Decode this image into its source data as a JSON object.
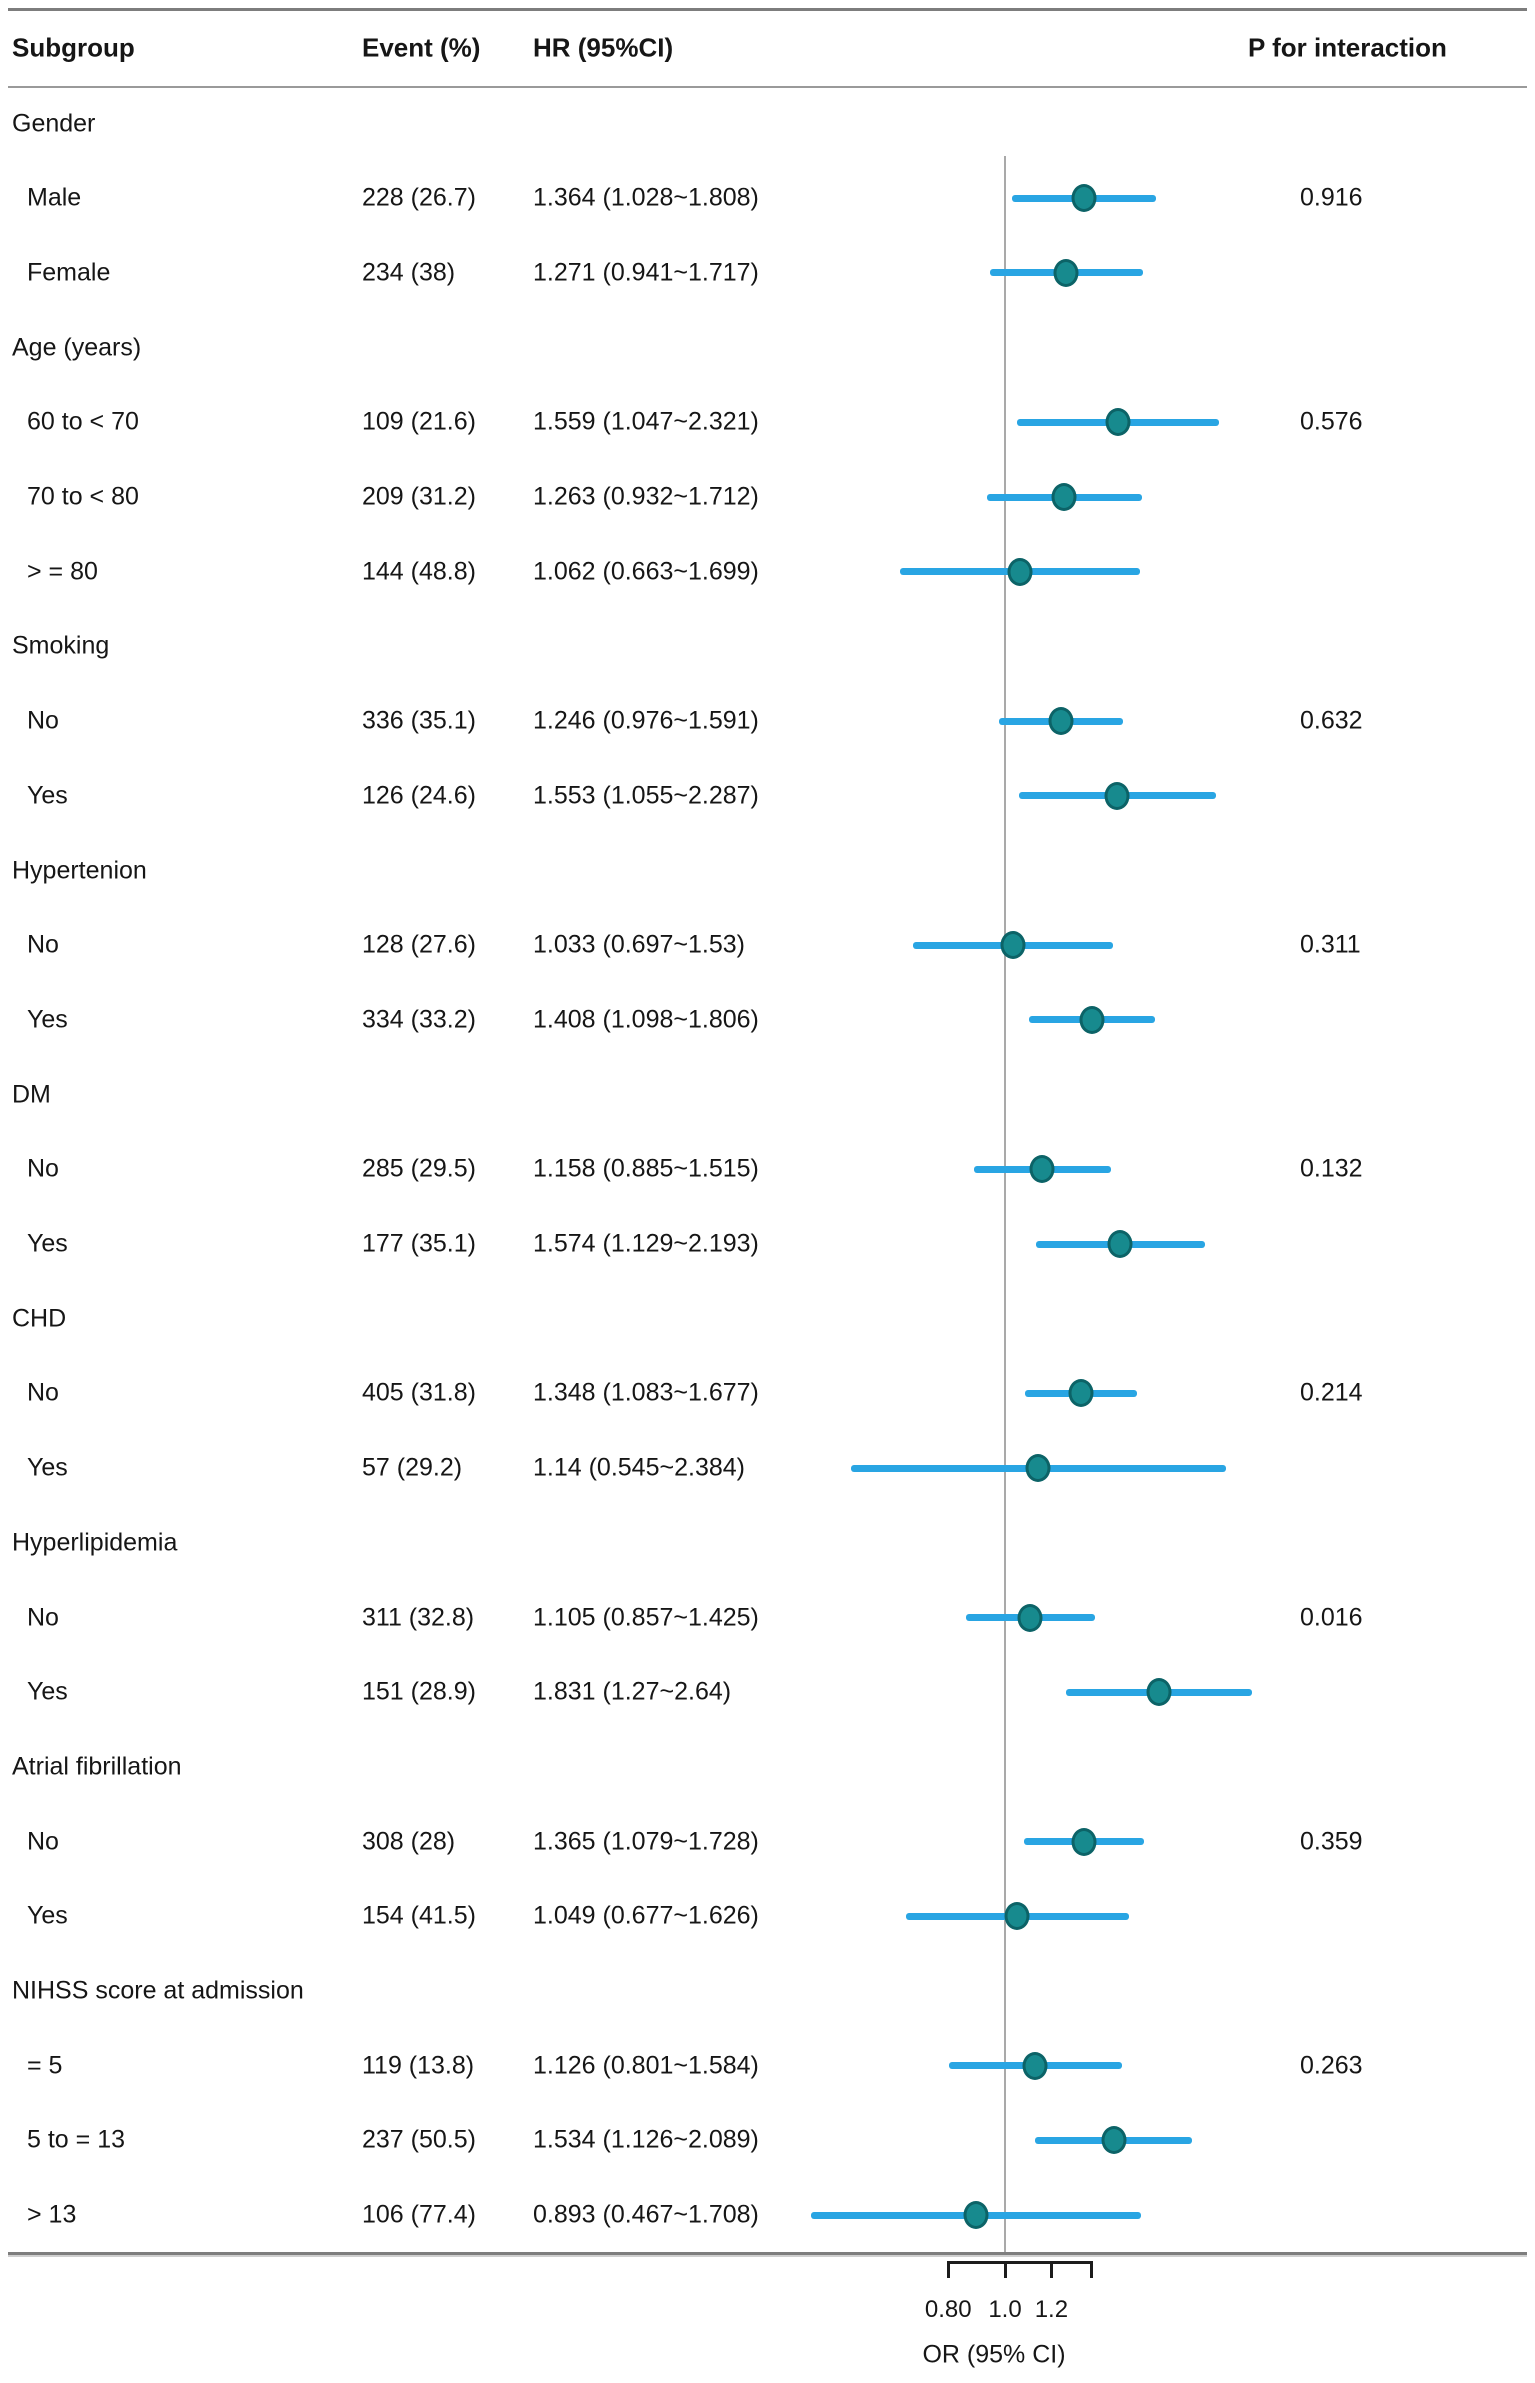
{
  "header": {
    "subgroup": "Subgroup",
    "event": "Event (%)",
    "hr": "HR (95%CI)",
    "p_interaction": "P for interaction"
  },
  "colors": {
    "marker_fill": "#178a8e",
    "marker_border": "#0c6367",
    "ci_line": "#29a5e3",
    "reference_line": "#a9a9a9",
    "rule_gray": "#7d7d7d",
    "text": "#161616"
  },
  "chart_data": {
    "type": "forest",
    "x_scale": "log10",
    "xlabel": "OR (95% CI)",
    "x_ticks": [
      {
        "label": "0.80",
        "value": 0.8
      },
      {
        "label": "1.0",
        "value": 1.0
      },
      {
        "label": "1.2",
        "value": 1.2
      }
    ],
    "x_axis_end_value": 1.4,
    "reference_value": 1.0,
    "columns": [
      "Subgroup",
      "Event (%)",
      "HR (95%CI)",
      "P for interaction"
    ],
    "rows": [
      {
        "type": "section",
        "label": "Gender"
      },
      {
        "type": "item",
        "label": "Male",
        "event": "228 (26.7)",
        "hr_text": "1.364 (1.028~1.808)",
        "or": 1.364,
        "lo": 1.028,
        "hi": 1.808,
        "p": "0.916"
      },
      {
        "type": "item",
        "label": "Female",
        "event": "234 (38)",
        "hr_text": "1.271 (0.941~1.717)",
        "or": 1.271,
        "lo": 0.941,
        "hi": 1.717
      },
      {
        "type": "section",
        "label": "Age (years)"
      },
      {
        "type": "item",
        "label": "60 to < 70",
        "event": "109 (21.6)",
        "hr_text": "1.559 (1.047~2.321)",
        "or": 1.559,
        "lo": 1.047,
        "hi": 2.321,
        "p": "0.576"
      },
      {
        "type": "item",
        "label": "70 to < 80",
        "event": "209 (31.2)",
        "hr_text": "1.263 (0.932~1.712)",
        "or": 1.263,
        "lo": 0.932,
        "hi": 1.712
      },
      {
        "type": "item",
        "label": "> = 80",
        "event": "144 (48.8)",
        "hr_text": "1.062 (0.663~1.699)",
        "or": 1.062,
        "lo": 0.663,
        "hi": 1.699
      },
      {
        "type": "section",
        "label": "Smoking"
      },
      {
        "type": "item",
        "label": "No",
        "event": "336 (35.1)",
        "hr_text": "1.246 (0.976~1.591)",
        "or": 1.246,
        "lo": 0.976,
        "hi": 1.591,
        "p": "0.632"
      },
      {
        "type": "item",
        "label": "Yes",
        "event": "126 (24.6)",
        "hr_text": "1.553 (1.055~2.287)",
        "or": 1.553,
        "lo": 1.055,
        "hi": 2.287
      },
      {
        "type": "section",
        "label": "Hypertenion"
      },
      {
        "type": "item",
        "label": "No",
        "event": "128 (27.6)",
        "hr_text": "1.033 (0.697~1.53)",
        "or": 1.033,
        "lo": 0.697,
        "hi": 1.53,
        "p": "0.311"
      },
      {
        "type": "item",
        "label": "Yes",
        "event": "334 (33.2)",
        "hr_text": "1.408 (1.098~1.806)",
        "or": 1.408,
        "lo": 1.098,
        "hi": 1.806
      },
      {
        "type": "section",
        "label": "DM"
      },
      {
        "type": "item",
        "label": "No",
        "event": "285 (29.5)",
        "hr_text": "1.158 (0.885~1.515)",
        "or": 1.158,
        "lo": 0.885,
        "hi": 1.515,
        "p": "0.132"
      },
      {
        "type": "item",
        "label": "Yes",
        "event": "177 (35.1)",
        "hr_text": "1.574 (1.129~2.193)",
        "or": 1.574,
        "lo": 1.129,
        "hi": 2.193
      },
      {
        "type": "section",
        "label": "CHD"
      },
      {
        "type": "item",
        "label": "No",
        "event": "405 (31.8)",
        "hr_text": "1.348 (1.083~1.677)",
        "or": 1.348,
        "lo": 1.083,
        "hi": 1.677,
        "p": "0.214"
      },
      {
        "type": "item",
        "label": "Yes",
        "event": "57 (29.2)",
        "hr_text": "1.14 (0.545~2.384)",
        "or": 1.14,
        "lo": 0.545,
        "hi": 2.384
      },
      {
        "type": "section",
        "label": "Hyperlipidemia"
      },
      {
        "type": "item",
        "label": "No",
        "event": "311 (32.8)",
        "hr_text": "1.105 (0.857~1.425)",
        "or": 1.105,
        "lo": 0.857,
        "hi": 1.425,
        "p": "0.016"
      },
      {
        "type": "item",
        "label": "Yes",
        "event": "151 (28.9)",
        "hr_text": "1.831 (1.27~2.64)",
        "or": 1.831,
        "lo": 1.27,
        "hi": 2.64
      },
      {
        "type": "section",
        "label": "Atrial fibrillation"
      },
      {
        "type": "item",
        "label": "No",
        "event": "308 (28)",
        "hr_text": "1.365 (1.079~1.728)",
        "or": 1.365,
        "lo": 1.079,
        "hi": 1.728,
        "p": "0.359"
      },
      {
        "type": "item",
        "label": "Yes",
        "event": "154 (41.5)",
        "hr_text": "1.049 (0.677~1.626)",
        "or": 1.049,
        "lo": 0.677,
        "hi": 1.626
      },
      {
        "type": "section",
        "label": "NIHSS score at admission"
      },
      {
        "type": "item",
        "label": "= 5",
        "event": "119 (13.8)",
        "hr_text": "1.126 (0.801~1.584)",
        "or": 1.126,
        "lo": 0.801,
        "hi": 1.584,
        "p": "0.263"
      },
      {
        "type": "item",
        "label": "5 to = 13",
        "event": "237 (50.5)",
        "hr_text": "1.534 (1.126~2.089)",
        "or": 1.534,
        "lo": 1.126,
        "hi": 2.089
      },
      {
        "type": "item",
        "label": "> 13",
        "event": "106 (77.4)",
        "hr_text": "0.893 (0.467~1.708)",
        "or": 0.893,
        "lo": 0.467,
        "hi": 1.708
      }
    ]
  }
}
